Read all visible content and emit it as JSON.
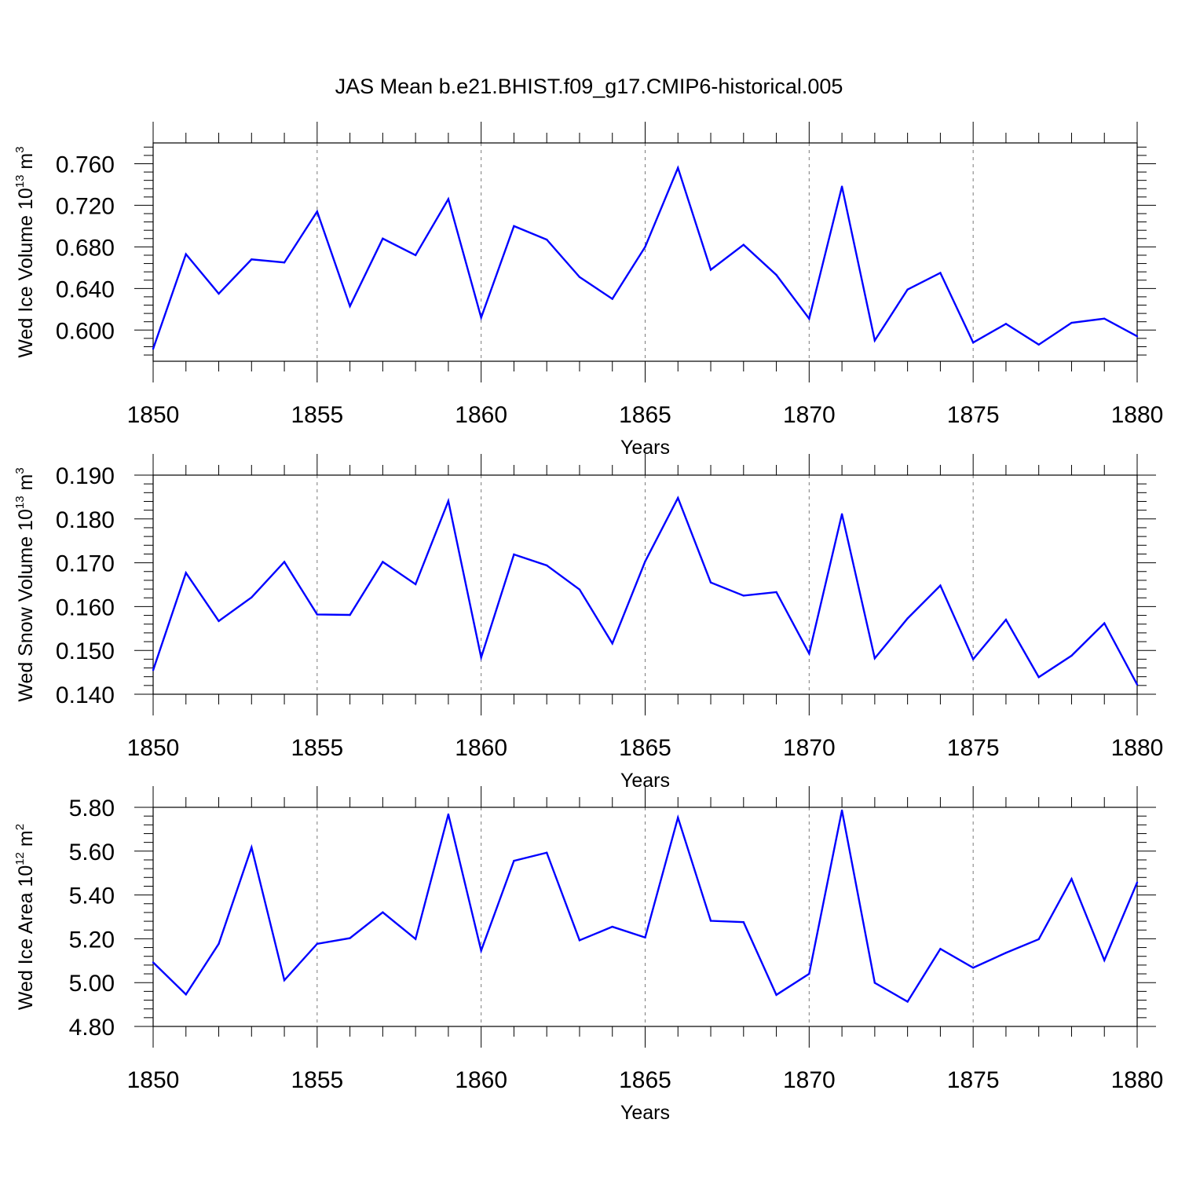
{
  "figure": {
    "title": "JAS Mean b.e21.BHIST.f09_g17.CMIP6-historical.005"
  },
  "colors": {
    "line": "#0000ff",
    "grid": "#7a7a7a",
    "axis": "#000000"
  },
  "chart_data": [
    {
      "type": "line",
      "ylabel_main": "Wed Ice Volume 10",
      "ylabel_exp": "13",
      "ylabel_unit": " m",
      "ylabel_unit_exp": "3",
      "xlabel": "Years",
      "xlim": [
        1850,
        1880
      ],
      "ylim": [
        0.57,
        0.78
      ],
      "yticks": [
        0.6,
        0.64,
        0.68,
        0.72,
        0.76
      ],
      "ytick_labels": [
        "0.600",
        "0.640",
        "0.680",
        "0.720",
        "0.760"
      ],
      "xticks": [
        1850,
        1855,
        1860,
        1865,
        1870,
        1875,
        1880
      ],
      "xtick_labels": [
        "1850",
        "1855",
        "1860",
        "1865",
        "1870",
        "1875",
        "1880"
      ],
      "grid_x": [
        1855,
        1860,
        1865,
        1870,
        1875
      ],
      "x": [
        1850,
        1851,
        1852,
        1853,
        1854,
        1855,
        1856,
        1857,
        1858,
        1859,
        1860,
        1861,
        1862,
        1863,
        1864,
        1865,
        1866,
        1867,
        1868,
        1869,
        1870,
        1871,
        1872,
        1873,
        1874,
        1875,
        1876,
        1877,
        1878,
        1879,
        1880
      ],
      "values": [
        0.582,
        0.673,
        0.635,
        0.668,
        0.665,
        0.714,
        0.623,
        0.688,
        0.672,
        0.726,
        0.612,
        0.7,
        0.687,
        0.651,
        0.63,
        0.68,
        0.756,
        0.658,
        0.682,
        0.653,
        0.611,
        0.738,
        0.59,
        0.639,
        0.655,
        0.588,
        0.606,
        0.586,
        0.607,
        0.611,
        0.594
      ]
    },
    {
      "type": "line",
      "ylabel_main": "Wed Snow Volume 10",
      "ylabel_exp": "13",
      "ylabel_unit": " m",
      "ylabel_unit_exp": "3",
      "xlabel": "Years",
      "xlim": [
        1850,
        1880
      ],
      "ylim": [
        0.14,
        0.19
      ],
      "yticks": [
        0.14,
        0.15,
        0.16,
        0.17,
        0.18,
        0.19
      ],
      "ytick_labels": [
        "0.140",
        "0.150",
        "0.160",
        "0.170",
        "0.180",
        "0.190"
      ],
      "xticks": [
        1850,
        1855,
        1860,
        1865,
        1870,
        1875,
        1880
      ],
      "xtick_labels": [
        "1850",
        "1855",
        "1860",
        "1865",
        "1870",
        "1875",
        "1880"
      ],
      "grid_x": [
        1855,
        1860,
        1865,
        1870,
        1875
      ],
      "x": [
        1850,
        1851,
        1852,
        1853,
        1854,
        1855,
        1856,
        1857,
        1858,
        1859,
        1860,
        1861,
        1862,
        1863,
        1864,
        1865,
        1866,
        1867,
        1868,
        1869,
        1870,
        1871,
        1872,
        1873,
        1874,
        1875,
        1876,
        1877,
        1878,
        1879,
        1880
      ],
      "values": [
        0.1455,
        0.1677,
        0.1567,
        0.1621,
        0.1702,
        0.1582,
        0.1581,
        0.1702,
        0.1651,
        0.1841,
        0.1484,
        0.1719,
        0.1694,
        0.1639,
        0.1516,
        0.1703,
        0.1848,
        0.1655,
        0.1625,
        0.1633,
        0.1493,
        0.1811,
        0.1482,
        0.1573,
        0.1648,
        0.148,
        0.157,
        0.1439,
        0.1488,
        0.1562,
        0.1422
      ]
    },
    {
      "type": "line",
      "ylabel_main": "Wed Ice Area 10",
      "ylabel_exp": "12",
      "ylabel_unit": " m",
      "ylabel_unit_exp": "2",
      "xlabel": "Years",
      "xlim": [
        1850,
        1880
      ],
      "ylim": [
        4.8,
        5.8
      ],
      "yticks": [
        4.8,
        5.0,
        5.2,
        5.4,
        5.6,
        5.8
      ],
      "ytick_labels": [
        "4.80",
        "5.00",
        "5.20",
        "5.40",
        "5.60",
        "5.80"
      ],
      "xticks": [
        1850,
        1855,
        1860,
        1865,
        1870,
        1875,
        1880
      ],
      "xtick_labels": [
        "1850",
        "1855",
        "1860",
        "1865",
        "1870",
        "1875",
        "1880"
      ],
      "grid_x": [
        1855,
        1860,
        1865,
        1870,
        1875
      ],
      "x": [
        1850,
        1851,
        1852,
        1853,
        1854,
        1855,
        1856,
        1857,
        1858,
        1859,
        1860,
        1861,
        1862,
        1863,
        1864,
        1865,
        1866,
        1867,
        1868,
        1869,
        1870,
        1871,
        1872,
        1873,
        1874,
        1875,
        1876,
        1877,
        1878,
        1879,
        1880
      ],
      "values": [
        5.092,
        4.946,
        5.177,
        5.617,
        5.011,
        5.177,
        5.203,
        5.321,
        5.199,
        5.768,
        5.146,
        5.556,
        5.593,
        5.193,
        5.255,
        5.206,
        5.753,
        5.282,
        5.276,
        4.944,
        5.04,
        5.786,
        4.999,
        4.913,
        5.154,
        5.068,
        5.136,
        5.198,
        5.473,
        5.102,
        5.457
      ]
    }
  ]
}
